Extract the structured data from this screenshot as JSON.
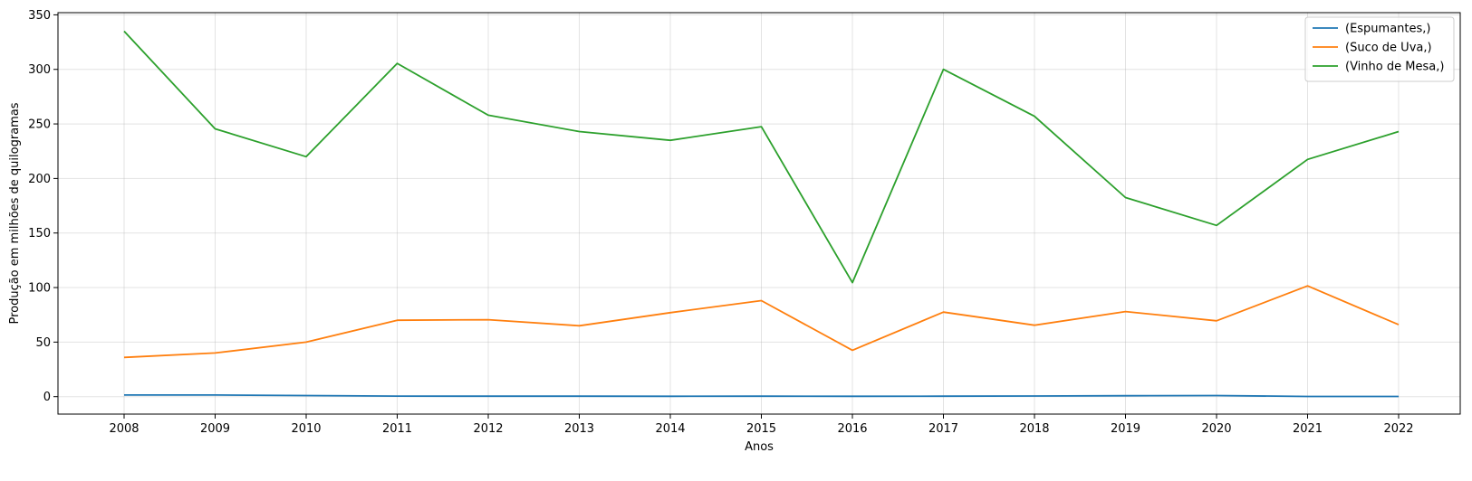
{
  "chart_data": {
    "type": "line",
    "title": "",
    "xlabel": "Anos",
    "ylabel": "Produção em milhões de quilogramas",
    "x": [
      "2008",
      "2009",
      "2010",
      "2011",
      "2012",
      "2013",
      "2014",
      "2015",
      "2016",
      "2017",
      "2018",
      "2019",
      "2020",
      "2021",
      "2022"
    ],
    "ylim": [
      -16,
      352
    ],
    "yticks": [
      0,
      50,
      100,
      150,
      200,
      250,
      300,
      350
    ],
    "grid": true,
    "legend_position": "top-right",
    "series": [
      {
        "name": "(Espumantes,)",
        "color": "#1f77b4",
        "values": [
          1.5,
          1.5,
          1.0,
          0.5,
          0.4,
          0.4,
          0.3,
          0.4,
          0.3,
          0.4,
          0.6,
          0.8,
          1.0,
          0.2,
          0.2
        ]
      },
      {
        "name": "(Suco de Uva,)",
        "color": "#ff7f0e",
        "values": [
          36,
          40,
          50,
          70,
          70.5,
          65,
          77,
          88,
          42.5,
          77.5,
          65.5,
          78,
          69.5,
          101.5,
          66
        ]
      },
      {
        "name": "(Vinho de Mesa,)",
        "color": "#2ca02c",
        "values": [
          335,
          245.5,
          220,
          305.5,
          258,
          243,
          235,
          247.5,
          104.5,
          300,
          257,
          182.5,
          157,
          217.5,
          243
        ]
      }
    ]
  }
}
